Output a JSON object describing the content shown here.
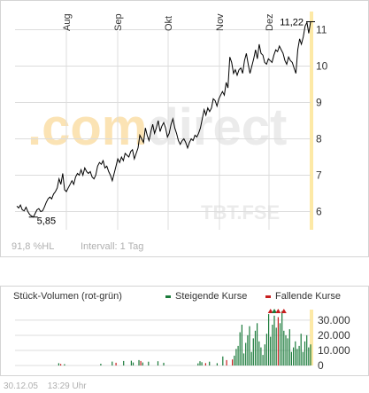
{
  "colors": {
    "price_line": "#000000",
    "grid": "#dcdcdc",
    "accent_band": "#fde9a6",
    "watermark": "#ebebeb",
    "watermark_accent": "#fbe3b4",
    "axis_text": "#333333",
    "muted_text": "#b0b0b0",
    "rising": "#1a7a3a",
    "falling": "#c81e1e"
  },
  "price_panel": {
    "watermark": {
      "part1": ".com",
      "part2": "direct"
    },
    "symbol": "TBT.FSE",
    "footer": {
      "performance": "91,8 %HL",
      "interval": "Intervall: 1 Tag"
    },
    "low_label": "5,85",
    "high_label": "11,22"
  },
  "volume_panel": {
    "title": "Stück-Volumen (rot-grün)",
    "legend_rising": "Steigende Kurse",
    "legend_falling": "Fallende Kurse"
  },
  "timestamp": {
    "date": "30.12.05",
    "time": "13:29 Uhr"
  },
  "chart_data": [
    {
      "type": "line",
      "title": "",
      "xlabel": "",
      "ylabel": "",
      "x_tick_labels": [
        "Aug",
        "Sep",
        "Okt",
        "Nov",
        "Dez"
      ],
      "y_ticks": [
        6,
        7,
        8,
        9,
        10,
        11
      ],
      "ylim": [
        5.5,
        11.5
      ],
      "grid": true,
      "annotations": [
        {
          "text": "5,85",
          "value": 5.85,
          "at": "minimum"
        },
        {
          "text": "11,22",
          "value": 11.22,
          "at": "maximum"
        }
      ],
      "series": [
        {
          "values": [
            6.15,
            6.1,
            6.18,
            6.05,
            6.02,
            6.12,
            6.0,
            5.92,
            5.88,
            5.85,
            5.95,
            6.05,
            6.08,
            6.0,
            6.02,
            6.12,
            6.25,
            6.35,
            6.4,
            6.35,
            6.48,
            6.55,
            6.65,
            6.9,
            6.75,
            7.05,
            6.6,
            6.55,
            6.65,
            6.75,
            6.85,
            6.75,
            6.95,
            7.05,
            7.0,
            7.15,
            7.0,
            7.2,
            7.1,
            7.05,
            7.1,
            6.95,
            6.9,
            7.0,
            7.25,
            7.35,
            7.3,
            7.4,
            7.2,
            7.25,
            7.1,
            7.0,
            6.85,
            7.05,
            7.25,
            7.45,
            7.35,
            7.5,
            7.4,
            7.6,
            7.55,
            7.5,
            7.65,
            7.7,
            7.45,
            7.6,
            7.75,
            8.1,
            8.0,
            7.9,
            8.3,
            8.1,
            7.95,
            8.2,
            8.4,
            8.15,
            8.3,
            8.5,
            8.2,
            8.35,
            8.45,
            8.3,
            8.05,
            8.15,
            8.4,
            8.55,
            8.3,
            8.15,
            7.95,
            7.85,
            7.95,
            8.0,
            7.9,
            7.75,
            7.9,
            8.0,
            7.95,
            8.1,
            8.05,
            8.15,
            8.3,
            8.55,
            8.8,
            8.65,
            8.85,
            8.75,
            8.85,
            9.1,
            9.05,
            8.9,
            9.1,
            9.2,
            9.3,
            9.2,
            9.55,
            9.4,
            10.25,
            10.1,
            9.8,
            9.9,
            9.75,
            9.9,
            9.95,
            9.8,
            10.15,
            10.35,
            10.05,
            9.8,
            10.0,
            10.2,
            10.45,
            10.2,
            10.6,
            10.35,
            10.3,
            10.1,
            10.05,
            10.2,
            10.15,
            10.1,
            10.3,
            10.45,
            10.4,
            10.55,
            10.45,
            10.35,
            10.15,
            10.05,
            10.25,
            10.15,
            10.1,
            9.95,
            9.8,
            10.45,
            10.75,
            10.6,
            10.8,
            11.1,
            11.2,
            10.9,
            11.22
          ]
        }
      ]
    },
    {
      "type": "bar",
      "title": "Stück-Volumen (rot-grün)",
      "xlabel": "",
      "ylabel": "",
      "y_ticks": [
        0,
        10000,
        20000,
        30000
      ],
      "y_tick_labels": [
        "0",
        "10.000",
        "20.000",
        "30.000"
      ],
      "ylim": [
        0,
        37000
      ],
      "grid": true,
      "legend": "top-right",
      "series": [
        {
          "name": "Steigende Kurse",
          "values": [
            0,
            0,
            0,
            0,
            0,
            0,
            0,
            0,
            0,
            0,
            0,
            0,
            0,
            0,
            0,
            0,
            0,
            0,
            0,
            0,
            0,
            0,
            1500,
            0,
            0,
            900,
            0,
            0,
            0,
            0,
            0,
            0,
            0,
            0,
            0,
            0,
            0,
            0,
            0,
            0,
            0,
            0,
            0,
            0,
            1200,
            0,
            0,
            0,
            0,
            0,
            2600,
            0,
            0,
            0,
            0,
            0,
            3000,
            0,
            0,
            0,
            3200,
            2000,
            0,
            0,
            3600,
            0,
            2000,
            0,
            0,
            2500,
            0,
            0,
            0,
            0,
            2800,
            0,
            0,
            1800,
            0,
            0,
            0,
            0,
            0,
            0,
            0,
            0,
            0,
            0,
            0,
            0,
            0,
            0,
            0,
            0,
            0,
            1400,
            2800,
            2200,
            0,
            0,
            0,
            2500,
            0,
            0,
            0,
            1500,
            0,
            0,
            6000,
            0,
            0,
            0,
            0,
            0,
            6500,
            11000,
            13000,
            22000,
            27000,
            8000,
            15000,
            20000,
            26000,
            9000,
            18000,
            23000,
            28000,
            16000,
            12000,
            7000,
            14000,
            21000,
            34000,
            19000,
            27000,
            33000,
            25000,
            0,
            28000,
            36000,
            23000,
            20000,
            18000,
            24000,
            9000,
            12000,
            16000,
            11000,
            13000,
            21000,
            9000,
            16000,
            20000,
            12000,
            14000
          ]
        },
        {
          "name": "Fallende Kurse",
          "values": [
            0,
            0,
            0,
            0,
            0,
            0,
            0,
            0,
            0,
            0,
            0,
            0,
            0,
            0,
            0,
            0,
            0,
            0,
            0,
            0,
            0,
            0,
            0,
            1000,
            0,
            0,
            0,
            0,
            0,
            0,
            0,
            0,
            0,
            0,
            0,
            0,
            0,
            0,
            0,
            0,
            0,
            0,
            0,
            0,
            0,
            0,
            0,
            0,
            0,
            0,
            0,
            0,
            1800,
            0,
            0,
            0,
            0,
            0,
            0,
            0,
            0,
            0,
            0,
            0,
            0,
            3000,
            0,
            0,
            0,
            0,
            0,
            0,
            0,
            0,
            0,
            0,
            0,
            0,
            0,
            0,
            0,
            0,
            0,
            0,
            0,
            0,
            0,
            0,
            0,
            0,
            0,
            0,
            0,
            0,
            0,
            0,
            0,
            0,
            0,
            1600,
            0,
            0,
            0,
            0,
            0,
            0,
            0,
            0,
            0,
            0,
            3600,
            0,
            0,
            4000,
            0,
            0,
            0,
            0,
            0,
            0,
            0,
            0,
            0,
            0,
            0,
            0,
            0,
            0,
            0,
            0,
            0,
            0,
            0,
            0,
            0,
            0,
            0,
            32000,
            0,
            0,
            0,
            0,
            0,
            0,
            0,
            0,
            0,
            0,
            0,
            0,
            0,
            0,
            0,
            0,
            0,
            0,
            0
          ]
        }
      ]
    }
  ]
}
